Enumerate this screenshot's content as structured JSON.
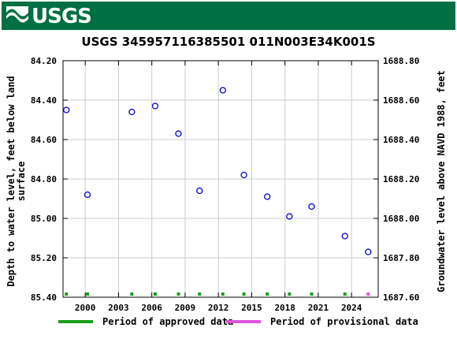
{
  "header": {
    "logo_text": "USGS",
    "brand_color": "#006f41"
  },
  "chart_data": {
    "type": "scatter",
    "title": "USGS 345957116385501 011N003E34K001S",
    "ylabel": "Depth to water level, feet below land surface",
    "ylabel_lines": [
      "Depth to water level, feet below land",
      "surface"
    ],
    "y2label": "Groundwater level above NAVD 1988, feet",
    "ylim": [
      84.2,
      85.4
    ],
    "y_inverted": true,
    "y_ticks": [
      "84.20",
      "84.40",
      "84.60",
      "84.80",
      "85.00",
      "85.20",
      "85.40"
    ],
    "y2lim": [
      1687.6,
      1688.8
    ],
    "y2_ticks": [
      "1688.80",
      "1688.60",
      "1688.40",
      "1688.20",
      "1688.00",
      "1687.80",
      "1687.60"
    ],
    "xlim": [
      1998.0,
      2026.4
    ],
    "x_ticks": [
      "2000",
      "2003",
      "2006",
      "2009",
      "2012",
      "2015",
      "2018",
      "2021",
      "2024"
    ],
    "grid": true,
    "series": [
      {
        "name": "Period of approved data",
        "color": "#1a9e1a",
        "marker_color": "#0000cc",
        "points": [
          {
            "x": 1998.3,
            "y": 84.45
          },
          {
            "x": 2000.2,
            "y": 84.88
          },
          {
            "x": 2004.2,
            "y": 84.46
          },
          {
            "x": 2006.3,
            "y": 84.43
          },
          {
            "x": 2008.4,
            "y": 84.57
          },
          {
            "x": 2010.3,
            "y": 84.86
          },
          {
            "x": 2012.4,
            "y": 84.35
          },
          {
            "x": 2014.3,
            "y": 84.78
          },
          {
            "x": 2016.4,
            "y": 84.89
          },
          {
            "x": 2018.4,
            "y": 84.99
          },
          {
            "x": 2020.4,
            "y": 84.94
          },
          {
            "x": 2023.4,
            "y": 85.09
          },
          {
            "x": 2025.5,
            "y": 85.17
          }
        ]
      },
      {
        "name": "Period of provisional data",
        "color": "#dd55dd",
        "points": []
      }
    ],
    "approval_bar": [
      {
        "x": 1998.3,
        "status": "approved"
      },
      {
        "x": 2000.2,
        "status": "approved"
      },
      {
        "x": 2004.2,
        "status": "approved"
      },
      {
        "x": 2006.3,
        "status": "approved"
      },
      {
        "x": 2008.4,
        "status": "approved"
      },
      {
        "x": 2010.3,
        "status": "approved"
      },
      {
        "x": 2012.4,
        "status": "approved"
      },
      {
        "x": 2014.3,
        "status": "approved"
      },
      {
        "x": 2016.4,
        "status": "approved"
      },
      {
        "x": 2018.4,
        "status": "approved"
      },
      {
        "x": 2020.4,
        "status": "approved"
      },
      {
        "x": 2023.4,
        "status": "approved"
      },
      {
        "x": 2025.5,
        "status": "provisional"
      }
    ],
    "legend": [
      {
        "label": "Period of approved data",
        "color": "#1a9e1a"
      },
      {
        "label": "Period of provisional data",
        "color": "#dd55dd"
      }
    ]
  }
}
